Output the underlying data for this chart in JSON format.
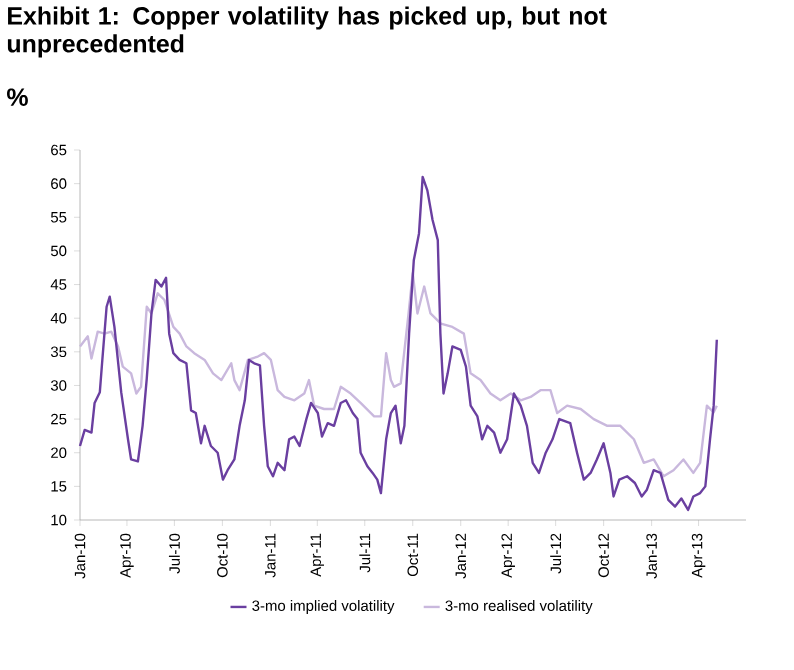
{
  "chart_data": {
    "type": "line",
    "title": "Exhibit 1: Copper volatility has picked up, but not unprecedented",
    "ylabel": "%",
    "xlim": [
      "2010-01-01",
      "2013-07-01"
    ],
    "ylim": [
      10,
      65
    ],
    "yticks": [
      10,
      15,
      20,
      25,
      30,
      35,
      40,
      45,
      50,
      55,
      60,
      65
    ],
    "xticks": [
      {
        "value": "2010-01-01",
        "label": "Jan-10"
      },
      {
        "value": "2010-04-01",
        "label": "Apr-10"
      },
      {
        "value": "2010-07-01",
        "label": "Jul-10"
      },
      {
        "value": "2010-10-01",
        "label": "Oct-10"
      },
      {
        "value": "2011-01-01",
        "label": "Jan-11"
      },
      {
        "value": "2011-04-01",
        "label": "Apr-11"
      },
      {
        "value": "2011-07-01",
        "label": "Jul-11"
      },
      {
        "value": "2011-10-01",
        "label": "Oct-11"
      },
      {
        "value": "2012-01-01",
        "label": "Jan-12"
      },
      {
        "value": "2012-04-01",
        "label": "Apr-12"
      },
      {
        "value": "2012-07-01",
        "label": "Jul-12"
      },
      {
        "value": "2012-10-01",
        "label": "Oct-12"
      },
      {
        "value": "2013-01-01",
        "label": "Jan-13"
      },
      {
        "value": "2013-04-01",
        "label": "Apr-13"
      }
    ],
    "legend": "bottom",
    "marker": "none",
    "line_style": "solid",
    "series": [
      {
        "name": "3-mo implied volatility",
        "color": "#6a3fa0",
        "x": [
          "2010-01-01",
          "2010-01-10",
          "2010-01-23",
          "2010-01-29",
          "2010-02-08",
          "2010-02-13",
          "2010-02-21",
          "2010-02-27",
          "2010-03-08",
          "2010-03-21",
          "2010-04-03",
          "2010-04-09",
          "2010-04-22",
          "2010-05-01",
          "2010-05-09",
          "2010-05-18",
          "2010-05-26",
          "2010-06-06",
          "2010-06-15",
          "2010-06-21",
          "2010-06-29",
          "2010-07-11",
          "2010-07-24",
          "2010-08-02",
          "2010-08-11",
          "2010-08-21",
          "2010-08-28",
          "2010-09-09",
          "2010-09-22",
          "2010-10-02",
          "2010-10-11",
          "2010-10-24",
          "2010-11-03",
          "2010-11-13",
          "2010-11-21",
          "2010-12-01",
          "2010-12-12",
          "2010-12-20",
          "2010-12-27",
          "2011-01-06",
          "2011-01-15",
          "2011-01-28",
          "2011-02-06",
          "2011-02-16",
          "2011-02-26",
          "2011-03-11",
          "2011-03-20",
          "2011-04-02",
          "2011-04-10",
          "2011-04-21",
          "2011-05-03",
          "2011-05-16",
          "2011-05-26",
          "2011-06-08",
          "2011-06-17",
          "2011-06-23",
          "2011-07-06",
          "2011-07-16",
          "2011-07-25",
          "2011-08-01",
          "2011-08-11",
          "2011-08-20",
          "2011-08-29",
          "2011-09-08",
          "2011-09-15",
          "2011-09-24",
          "2011-10-03",
          "2011-10-13",
          "2011-10-20",
          "2011-10-29",
          "2011-11-08",
          "2011-11-18",
          "2011-11-23",
          "2011-11-29",
          "2011-12-07",
          "2011-12-16",
          "2012-01-01",
          "2012-01-11",
          "2012-01-20",
          "2012-02-02",
          "2012-02-11",
          "2012-02-21",
          "2012-03-05",
          "2012-03-17",
          "2012-03-30",
          "2012-04-12",
          "2012-04-25",
          "2012-05-07",
          "2012-05-18",
          "2012-05-30",
          "2012-06-12",
          "2012-06-25",
          "2012-07-08",
          "2012-07-29",
          "2012-08-11",
          "2012-08-24",
          "2012-09-06",
          "2012-09-18",
          "2012-10-01",
          "2012-10-14",
          "2012-10-20",
          "2012-10-31",
          "2012-11-15",
          "2012-11-30",
          "2012-12-13",
          "2012-12-23",
          "2013-01-05",
          "2013-01-18",
          "2013-02-02",
          "2013-02-15",
          "2013-02-27",
          "2013-03-12",
          "2013-03-22",
          "2013-04-04",
          "2013-04-14",
          "2013-04-23",
          "2013-04-30",
          "2013-05-06"
        ],
        "values": [
          21,
          23.4,
          23,
          27.4,
          29,
          34,
          41.7,
          43.2,
          38.7,
          29,
          22,
          19,
          18.7,
          24,
          31,
          40.7,
          45.7,
          44.7,
          46,
          37.7,
          34.8,
          33.8,
          33.3,
          26.3,
          25.9,
          21.4,
          24,
          21,
          20,
          16,
          17.4,
          19,
          24,
          27.8,
          33.8,
          33.3,
          33,
          24,
          18,
          16.5,
          18.5,
          17.4,
          22,
          22.4,
          21,
          25,
          27.4,
          25.9,
          22.4,
          24.4,
          24,
          27.4,
          27.8,
          25.9,
          25,
          20,
          18,
          17,
          16,
          14,
          22,
          25.9,
          27,
          21.4,
          24,
          37.7,
          48.6,
          52.6,
          61,
          59,
          54.6,
          51.6,
          37.7,
          28.8,
          31.8,
          35.8,
          35.3,
          32.8,
          27,
          25.4,
          22,
          24,
          23,
          20,
          22,
          28.8,
          27,
          24,
          18.5,
          17,
          20,
          22,
          25,
          24.4,
          20,
          16,
          17,
          19,
          21.4,
          17,
          13.5,
          16,
          16.5,
          15.5,
          13.5,
          14.5,
          17.4,
          17,
          13,
          12,
          13.2,
          11.5,
          13.5,
          14,
          15,
          22,
          27,
          36.8
        ]
      },
      {
        "name": "3-mo realised volatility",
        "color": "#c9b8dd",
        "x": [
          "2010-01-01",
          "2010-01-16",
          "2010-01-23",
          "2010-02-04",
          "2010-02-17",
          "2010-03-02",
          "2010-03-15",
          "2010-03-24",
          "2010-04-09",
          "2010-04-19",
          "2010-04-28",
          "2010-05-09",
          "2010-05-18",
          "2010-05-30",
          "2010-06-12",
          "2010-06-29",
          "2010-07-11",
          "2010-07-24",
          "2010-08-08",
          "2010-08-28",
          "2010-09-13",
          "2010-09-29",
          "2010-10-18",
          "2010-10-24",
          "2010-11-03",
          "2010-11-19",
          "2010-12-08",
          "2010-12-20",
          "2011-01-02",
          "2011-01-15",
          "2011-01-28",
          "2011-02-16",
          "2011-03-07",
          "2011-03-16",
          "2011-03-26",
          "2011-04-14",
          "2011-05-03",
          "2011-05-16",
          "2011-06-04",
          "2011-06-23",
          "2011-07-19",
          "2011-08-01",
          "2011-08-11",
          "2011-08-20",
          "2011-08-26",
          "2011-09-08",
          "2011-09-23",
          "2011-10-01",
          "2011-10-10",
          "2011-10-23",
          "2011-11-04",
          "2011-11-24",
          "2011-12-16",
          "2012-01-07",
          "2012-01-20",
          "2012-02-08",
          "2012-02-27",
          "2012-03-17",
          "2012-04-06",
          "2012-04-25",
          "2012-05-14",
          "2012-06-02",
          "2012-06-21",
          "2012-07-04",
          "2012-07-23",
          "2012-08-18",
          "2012-09-12",
          "2012-10-08",
          "2012-11-02",
          "2012-11-28",
          "2012-12-17",
          "2013-01-05",
          "2013-01-24",
          "2013-02-12",
          "2013-03-03",
          "2013-03-22",
          "2013-04-04",
          "2013-04-17",
          "2013-04-30",
          "2013-05-06"
        ],
        "values": [
          35.8,
          37.3,
          34,
          38,
          37.7,
          38,
          35.8,
          32.8,
          31.8,
          28.8,
          29.8,
          41.7,
          40.7,
          43.7,
          42.7,
          38.7,
          37.7,
          35.8,
          34.8,
          33.8,
          31.8,
          30.8,
          33.3,
          30.8,
          29.3,
          33.8,
          34.3,
          34.8,
          33.8,
          29.3,
          28.3,
          27.8,
          28.8,
          30.8,
          27,
          26.5,
          26.5,
          29.8,
          28.8,
          27.4,
          25.4,
          25.4,
          34.8,
          30.8,
          29.8,
          30.3,
          40.7,
          46.7,
          40.7,
          44.7,
          40.7,
          39.2,
          38.7,
          37.7,
          31.8,
          30.8,
          28.8,
          27.8,
          28.8,
          27.8,
          28.3,
          29.3,
          29.3,
          25.9,
          27,
          26.5,
          25,
          24,
          24,
          22,
          18.5,
          19,
          16.5,
          17.4,
          19,
          17,
          18.5,
          27,
          26,
          27
        ]
      }
    ]
  }
}
